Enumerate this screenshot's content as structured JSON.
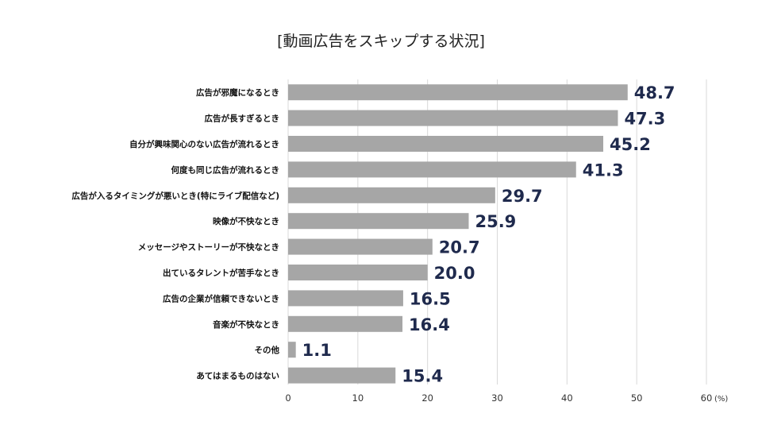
{
  "chart_data": {
    "type": "bar",
    "orientation": "horizontal",
    "title": "[動画広告をスキップする状況]",
    "categories": [
      "広告が邪魔になるとき",
      "広告が長すぎるとき",
      "自分が興味関心のない広告が流れるとき",
      "何度も同じ広告が流れるとき",
      "広告が入るタイミングが悪いとき(特にライブ配信など)",
      "映像が不快なとき",
      "メッセージやストーリーが不快なとき",
      "出ているタレントが苦手なとき",
      "広告の企業が信頼できないとき",
      "音楽が不快なとき",
      "その他",
      "あてはまるものはない"
    ],
    "values": [
      48.7,
      47.3,
      45.2,
      41.3,
      29.7,
      25.9,
      20.7,
      20.0,
      16.5,
      16.4,
      1.1,
      15.4
    ],
    "value_labels": [
      "48.7",
      "47.3",
      "45.2",
      "41.3",
      "29.7",
      "25.9",
      "20.7",
      "20.0",
      "16.5",
      "16.4",
      "1.1",
      "15.4"
    ],
    "xlim": [
      0,
      60
    ],
    "xticks": [
      0,
      10,
      20,
      30,
      40,
      50,
      60
    ],
    "xtick_labels": [
      "0",
      "10",
      "20",
      "30",
      "40",
      "50",
      "60"
    ],
    "xlabel": "(%)",
    "ylabel": "",
    "grid": true,
    "colors": {
      "bar": "#a6a6a6",
      "value_text": "#1f2a4d",
      "grid": "#d9d9d9"
    }
  }
}
